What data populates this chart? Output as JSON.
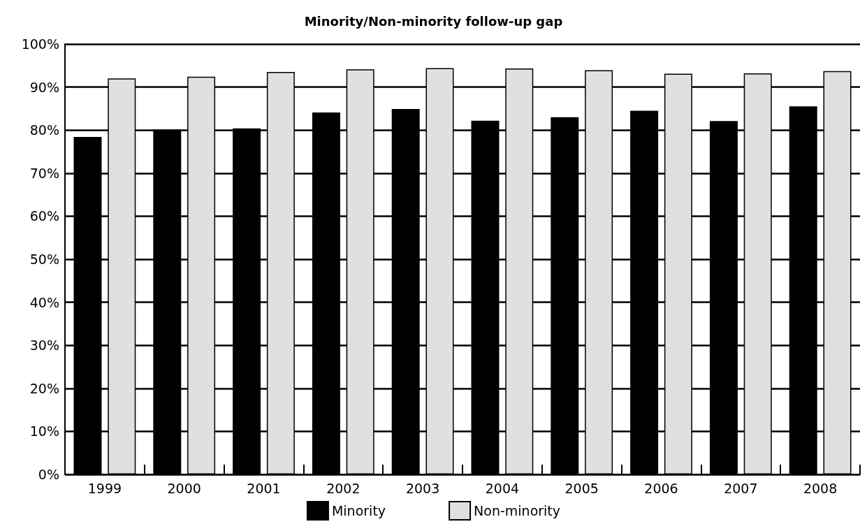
{
  "chart_data": {
    "type": "bar",
    "title": "Minority/Non-minority follow-up gap",
    "categories": [
      "1999",
      "2000",
      "2001",
      "2002",
      "2003",
      "2004",
      "2005",
      "2006",
      "2007",
      "2008"
    ],
    "series": [
      {
        "name": "Minority",
        "color": "#000000",
        "values": [
          78.4,
          80.1,
          80.4,
          84.1,
          84.9,
          82.2,
          83.0,
          84.5,
          82.1,
          85.5
        ]
      },
      {
        "name": "Non-minority",
        "color": "#e0e0e2",
        "values": [
          92.0,
          92.4,
          93.5,
          94.1,
          94.4,
          94.3,
          93.9,
          93.1,
          93.2,
          93.7
        ]
      }
    ],
    "ylim": [
      0,
      100
    ],
    "yticks": [
      {
        "value": 0,
        "label": "0%"
      },
      {
        "value": 10,
        "label": "10%"
      },
      {
        "value": 20,
        "label": "20%"
      },
      {
        "value": 30,
        "label": "30%"
      },
      {
        "value": 40,
        "label": "40%"
      },
      {
        "value": 50,
        "label": "50%"
      },
      {
        "value": 60,
        "label": "60%"
      },
      {
        "value": 70,
        "label": "70%"
      },
      {
        "value": 80,
        "label": "80%"
      },
      {
        "value": 90,
        "label": "90%"
      },
      {
        "value": 100,
        "label": "100%"
      }
    ],
    "grid": "y",
    "legend": "bottom"
  }
}
